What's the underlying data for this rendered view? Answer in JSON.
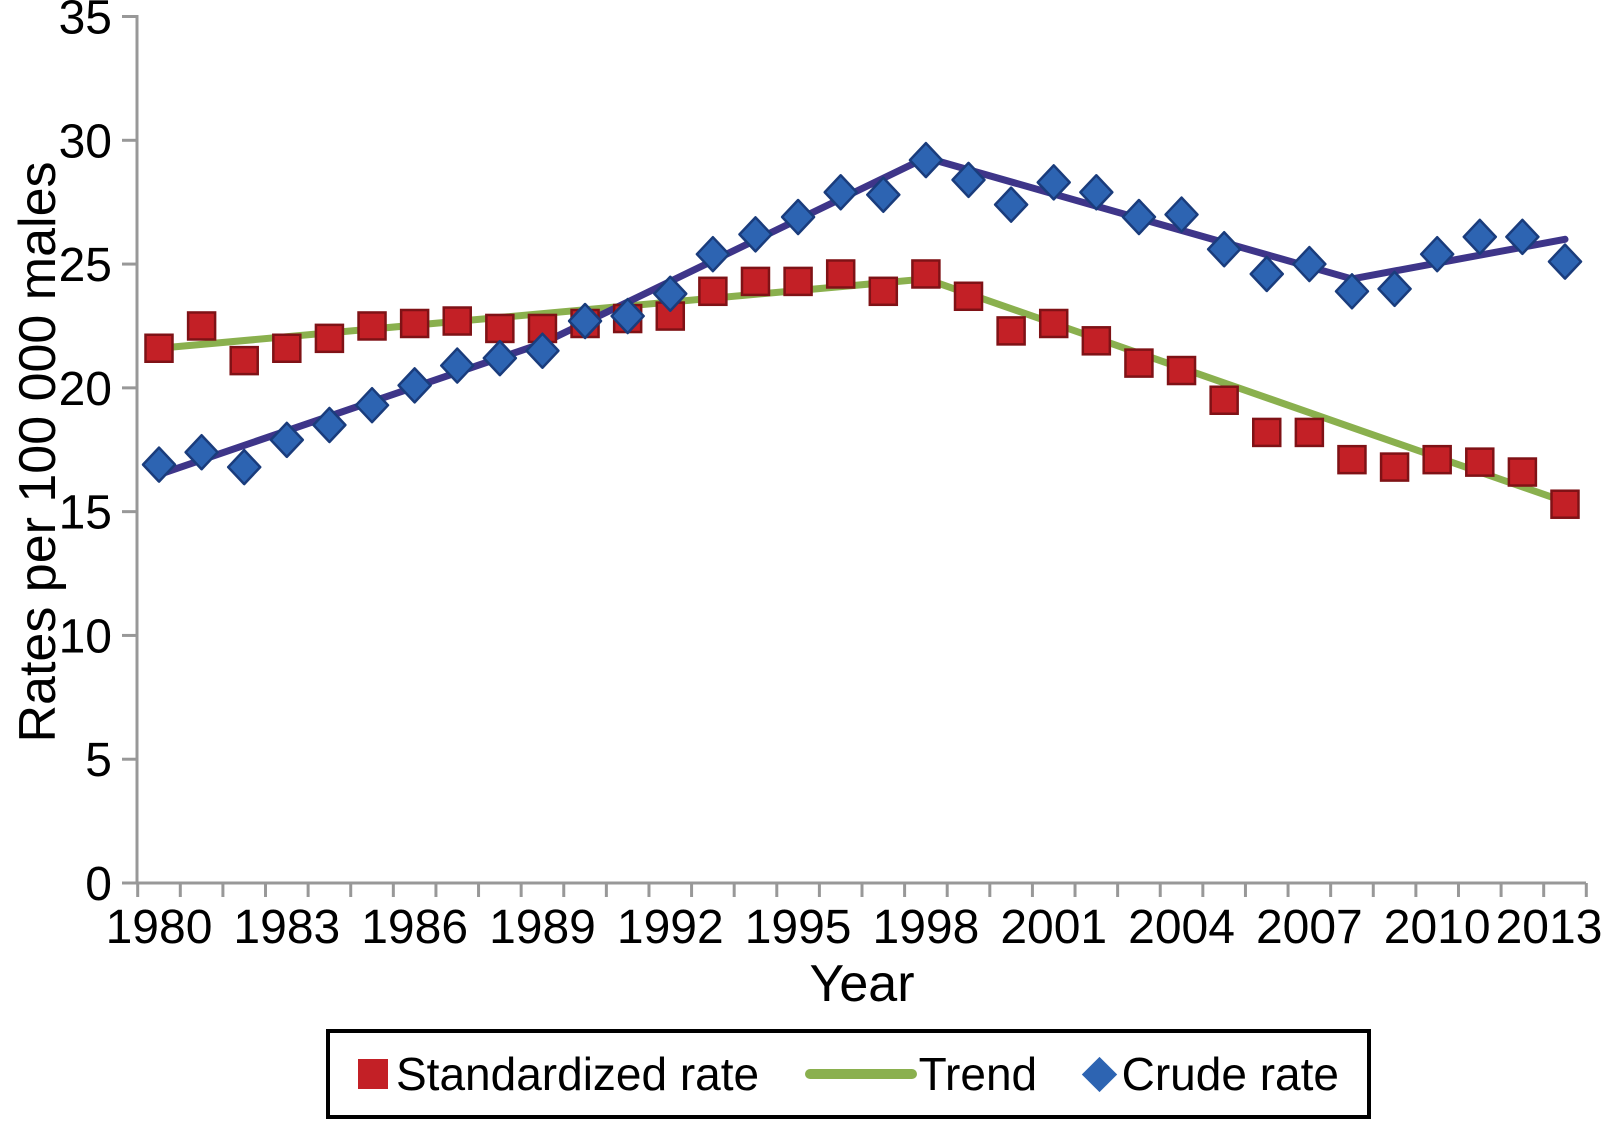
{
  "chart_data": {
    "type": "line",
    "description": "Scatter of standardized and crude rates by year with joinpoint trend lines",
    "xlabel": "Year",
    "ylabel": "Rates per 100 000 males",
    "ylim": [
      0,
      35
    ],
    "yticks": [
      0,
      5,
      10,
      15,
      20,
      25,
      30,
      35
    ],
    "xlim": [
      1979.5,
      2013.5
    ],
    "xtick_label_years": [
      1980,
      1983,
      1986,
      1989,
      1992,
      1995,
      1998,
      2001,
      2004,
      2007,
      2010,
      2013
    ],
    "grid": "off",
    "years": [
      1980,
      1981,
      1982,
      1983,
      1984,
      1985,
      1986,
      1987,
      1988,
      1989,
      1990,
      1991,
      1992,
      1993,
      1994,
      1995,
      1996,
      1997,
      1998,
      1999,
      2000,
      2001,
      2002,
      2003,
      2004,
      2005,
      2006,
      2007,
      2008,
      2009,
      2010,
      2011,
      2012,
      2013
    ],
    "series": [
      {
        "id": "standardized_rate",
        "legend_label": "Standardized rate",
        "kind": "scatter",
        "marker": "square",
        "color": "#c32026",
        "edge_color": "#7f1216",
        "values": [
          21.6,
          22.5,
          21.1,
          21.6,
          22.0,
          22.5,
          22.6,
          22.7,
          22.4,
          22.4,
          22.6,
          22.8,
          22.9,
          23.9,
          24.3,
          24.3,
          24.6,
          23.9,
          24.6,
          23.7,
          22.3,
          22.6,
          21.9,
          21.0,
          20.7,
          19.5,
          18.2,
          18.2,
          17.1,
          16.8,
          17.1,
          17.0,
          16.6,
          15.3
        ]
      },
      {
        "id": "crude_rate",
        "legend_label": "Crude rate",
        "kind": "scatter",
        "marker": "diamond",
        "color": "#2d64b2",
        "edge_color": "#1a3c7c",
        "values": [
          16.9,
          17.4,
          16.8,
          17.9,
          18.5,
          19.3,
          20.1,
          20.9,
          21.2,
          21.5,
          22.7,
          22.9,
          23.8,
          25.4,
          26.2,
          26.9,
          27.9,
          27.8,
          29.2,
          28.4,
          27.4,
          28.3,
          27.9,
          26.9,
          27.0,
          25.6,
          24.6,
          25.0,
          23.9,
          24.0,
          25.4,
          26.1,
          26.1,
          25.1
        ]
      },
      {
        "id": "trend_standardized",
        "legend_label": "Trend",
        "kind": "line",
        "color": "#8ab04e",
        "points": [
          [
            1980,
            21.6
          ],
          [
            1998,
            24.4
          ],
          [
            2013,
            15.4
          ]
        ]
      },
      {
        "id": "trend_crude",
        "kind": "line",
        "color": "#3e3589",
        "points": [
          [
            1980,
            16.5
          ],
          [
            1989,
            21.8
          ],
          [
            1998,
            29.3
          ],
          [
            2008,
            24.4
          ],
          [
            2013,
            26.0
          ]
        ]
      }
    ],
    "legend": {
      "position": "bottom",
      "border": "#000000",
      "entries": [
        {
          "label": "Standardized rate",
          "marker": "square",
          "color": "#c32026"
        },
        {
          "label": "Trend",
          "marker": "line",
          "color": "#8ab04e"
        },
        {
          "label": "Crude rate",
          "marker": "diamond",
          "color": "#2d64b2"
        }
      ]
    },
    "axis_color": "#989898",
    "text_color": "#000000"
  }
}
